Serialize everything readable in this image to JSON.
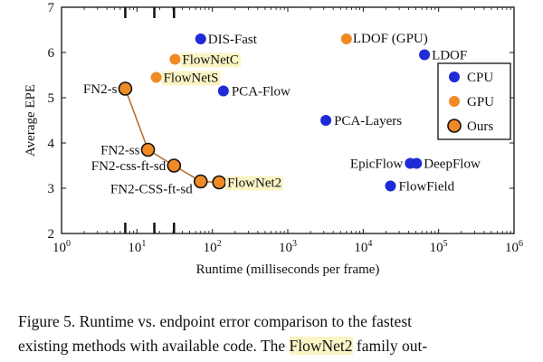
{
  "chart_data": {
    "type": "scatter",
    "xlabel": "Runtime (milliseconds per frame)",
    "ylabel": "Average EPE",
    "x_scale": "log",
    "xlim": [
      1,
      1000000
    ],
    "ylim": [
      2,
      7
    ],
    "x_ticks": [
      {
        "value": 1,
        "base": "10",
        "exp": "0"
      },
      {
        "value": 10,
        "base": "10",
        "exp": "1"
      },
      {
        "value": 100,
        "base": "10",
        "exp": "2"
      },
      {
        "value": 1000,
        "base": "10",
        "exp": "3"
      },
      {
        "value": 10000,
        "base": "10",
        "exp": "4"
      },
      {
        "value": 100000,
        "base": "10",
        "exp": "5"
      },
      {
        "value": 1000000,
        "base": "10",
        "exp": "6"
      }
    ],
    "y_ticks": [
      2,
      3,
      4,
      5,
      6,
      7
    ],
    "colors": {
      "CPU": "#1f2bd6",
      "GPU": "#f08a24",
      "Ours": "#f08a24",
      "line": "#b5712f",
      "highlight": "#fbf5c6"
    },
    "legend": {
      "placement": "right",
      "entries": [
        "CPU",
        "GPU",
        "Ours"
      ]
    },
    "points": [
      {
        "label": "DIS-Fast",
        "group": "CPU",
        "x": 70,
        "y": 6.3
      },
      {
        "label": "FlowNetC",
        "group": "GPU",
        "x": 32,
        "y": 5.85,
        "highlight": true
      },
      {
        "label": "FlowNetS",
        "group": "GPU",
        "x": 18,
        "y": 5.45,
        "highlight": true
      },
      {
        "label": "PCA-Flow",
        "group": "CPU",
        "x": 140,
        "y": 5.15
      },
      {
        "label": "LDOF (GPU)",
        "group": "GPU",
        "x": 6000,
        "y": 6.3
      },
      {
        "label": "LDOF",
        "group": "CPU",
        "x": 65000,
        "y": 5.95
      },
      {
        "label": "PCA-Layers",
        "group": "CPU",
        "x": 3200,
        "y": 4.5
      },
      {
        "label": "EpicFlow",
        "group": "CPU",
        "x": 42000,
        "y": 3.55
      },
      {
        "label": "DeepFlow",
        "group": "CPU",
        "x": 51000,
        "y": 3.55
      },
      {
        "label": "FlowField",
        "group": "CPU",
        "x": 23000,
        "y": 3.05
      }
    ],
    "ours_series": [
      {
        "label": "FN2-s",
        "x": 7,
        "y": 5.2
      },
      {
        "label": "FN2-ss",
        "x": 14,
        "y": 3.85
      },
      {
        "label": "FN2-css-ft-sd",
        "x": 31,
        "y": 3.5
      },
      {
        "label": "FN2-CSS-ft-sd",
        "x": 70,
        "y": 3.15
      },
      {
        "label": "FlowNet2",
        "x": 123,
        "y": 3.13,
        "highlight": true
      }
    ],
    "markers_x": [
      7,
      17,
      31
    ]
  },
  "caption": {
    "line1": "Figure 5. Runtime vs.  endpoint error comparison to the fastest",
    "line2_before": "existing methods with available code. The ",
    "line2_highlight": "FlowNet2",
    "line2_after": " family out-"
  }
}
